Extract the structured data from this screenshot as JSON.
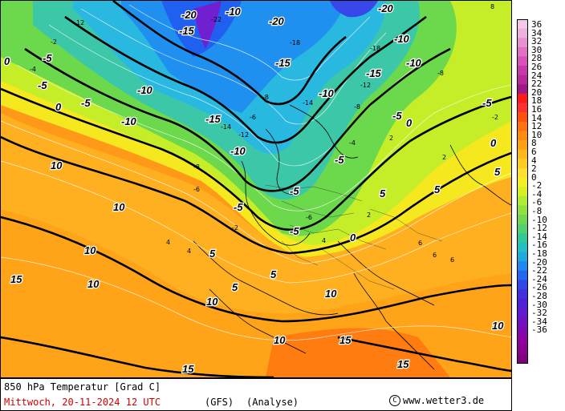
{
  "map": {
    "iso_labels": [
      {
        "text": "-20"
      },
      {
        "text": "-20"
      },
      {
        "text": "-20"
      },
      {
        "text": "-15"
      },
      {
        "text": "-15"
      },
      {
        "text": "-15"
      },
      {
        "text": "-15"
      },
      {
        "text": "-10"
      },
      {
        "text": "-10"
      },
      {
        "text": "-10"
      },
      {
        "text": "-10"
      },
      {
        "text": "-10"
      },
      {
        "text": "-10"
      },
      {
        "text": "-10"
      },
      {
        "text": "-5"
      },
      {
        "text": "-5"
      },
      {
        "text": "-5"
      },
      {
        "text": "-5"
      },
      {
        "text": "-5"
      },
      {
        "text": "-5"
      },
      {
        "text": "-5"
      },
      {
        "text": "-5"
      },
      {
        "text": "-5"
      },
      {
        "text": "0"
      },
      {
        "text": "0"
      },
      {
        "text": "0"
      },
      {
        "text": "0"
      },
      {
        "text": "0"
      },
      {
        "text": "5"
      },
      {
        "text": "5"
      },
      {
        "text": "5"
      },
      {
        "text": "5"
      },
      {
        "text": "5"
      },
      {
        "text": "5"
      },
      {
        "text": "10"
      },
      {
        "text": "10"
      },
      {
        "text": "10"
      },
      {
        "text": "10"
      },
      {
        "text": "10"
      },
      {
        "text": "10"
      },
      {
        "text": "10"
      },
      {
        "text": "10"
      },
      {
        "text": "15"
      },
      {
        "text": "15"
      },
      {
        "text": "15"
      },
      {
        "text": "15"
      }
    ],
    "point_values": [
      {
        "text": "-22"
      },
      {
        "text": "-18"
      },
      {
        "text": "-18"
      },
      {
        "text": "-14"
      },
      {
        "text": "-14"
      },
      {
        "text": "-12"
      },
      {
        "text": "-12"
      },
      {
        "text": "-8"
      },
      {
        "text": "-8"
      },
      {
        "text": "-8"
      },
      {
        "text": "-8"
      },
      {
        "text": "-6"
      },
      {
        "text": "-6"
      },
      {
        "text": "-6"
      },
      {
        "text": "-4"
      },
      {
        "text": "-4"
      },
      {
        "text": "-2"
      },
      {
        "text": "-2"
      },
      {
        "text": "-2"
      },
      {
        "text": "2"
      },
      {
        "text": "2"
      },
      {
        "text": "2"
      },
      {
        "text": "4"
      },
      {
        "text": "4"
      },
      {
        "text": "6"
      },
      {
        "text": "6"
      },
      {
        "text": "6"
      },
      {
        "text": "8"
      },
      {
        "text": "12"
      },
      {
        "text": "4"
      }
    ]
  },
  "colorbar": {
    "labels": [
      "36",
      "34",
      "32",
      "30",
      "28",
      "26",
      "24",
      "22",
      "20",
      "18",
      "16",
      "14",
      "12",
      "10",
      "8",
      "6",
      "4",
      "2",
      "0",
      "-2",
      "-4",
      "-6",
      "-8",
      "-10",
      "-12",
      "-14",
      "-16",
      "-18",
      "-20",
      "-22",
      "-24",
      "-26",
      "-28",
      "-30",
      "-32",
      "-34",
      "-36"
    ],
    "colors": [
      "#f4c8e8",
      "#eeb0dc",
      "#e890d0",
      "#e070c4",
      "#d850b8",
      "#c838a8",
      "#b82898",
      "#a01888",
      "#ff1a1a",
      "#ff3030",
      "#ff5010",
      "#ff7010",
      "#ff8a10",
      "#ffa010",
      "#ffb81a",
      "#ffcc20",
      "#ffe030",
      "#f4f020",
      "#d8f020",
      "#b0ec30",
      "#90e040",
      "#70d850",
      "#50d070",
      "#30c898",
      "#20c0c0",
      "#20a8e0",
      "#2088f0",
      "#2068f0",
      "#3048e8",
      "#4030e0",
      "#5020d8",
      "#6018d0",
      "#7010c0",
      "#8008b0",
      "#9000a0",
      "#8c0090",
      "#800080"
    ]
  },
  "info": {
    "title": "850 hPa Temperatur [Grad C]",
    "date": "Mittwoch, 20-11-2024  12 UTC",
    "model": "(GFS)",
    "type": "(Analyse)",
    "copyright_symbol": "C",
    "credit": "www.wetter3.de"
  }
}
